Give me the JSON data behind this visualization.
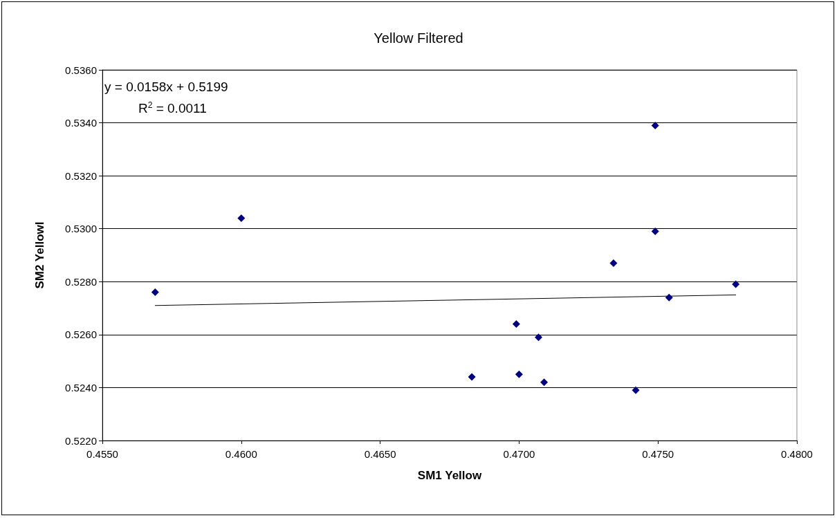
{
  "chart_data": {
    "type": "scatter",
    "title": "Yellow Filtered",
    "xlabel": "SM1 Yellow",
    "ylabel": "SM2 Yellowl",
    "series": [
      {
        "color": "#000080",
        "x": [
          0.4569,
          0.46,
          0.4683,
          0.4699,
          0.47,
          0.4707,
          0.4709,
          0.4734,
          0.4742,
          0.4749,
          0.4749,
          0.4754,
          0.4778
        ],
        "values": [
          0.5276,
          0.5304,
          0.5244,
          0.5264,
          0.5245,
          0.5259,
          0.5242,
          0.5287,
          0.5239,
          0.5339,
          0.5299,
          0.5274,
          0.5279
        ]
      },
      {
        "type": "line",
        "color": "#000000",
        "x": [
          0.4569,
          0.4778
        ],
        "values": [
          0.5271,
          0.5275
        ],
        "marker": "none"
      }
    ],
    "annotations": [
      "y = 0.0158x + 0.5199",
      "R$^{2}$ = 0.0011"
    ],
    "xlim": [
      0.455,
      0.48
    ],
    "xticks": [
      {
        "value": 0.455,
        "label": "0.4550"
      },
      {
        "value": 0.46,
        "label": "0.4600"
      },
      {
        "value": 0.465,
        "label": "0.4650"
      },
      {
        "value": 0.47,
        "label": "0.4700"
      },
      {
        "value": 0.475,
        "label": "0.4750"
      },
      {
        "value": 0.48,
        "label": "0.4800"
      }
    ],
    "ylim": [
      0.522,
      0.536
    ],
    "yticks": [
      {
        "value": 0.522,
        "label": "0.5220"
      },
      {
        "value": 0.524,
        "label": "0.5240"
      },
      {
        "value": 0.526,
        "label": "0.5260"
      },
      {
        "value": 0.528,
        "label": "0.5280"
      },
      {
        "value": 0.53,
        "label": "0.5300"
      },
      {
        "value": 0.532,
        "label": "0.5320"
      },
      {
        "value": 0.534,
        "label": "0.5340"
      },
      {
        "value": 0.536,
        "label": "0.5360"
      }
    ],
    "grid": "y",
    "marker": "diamond"
  }
}
